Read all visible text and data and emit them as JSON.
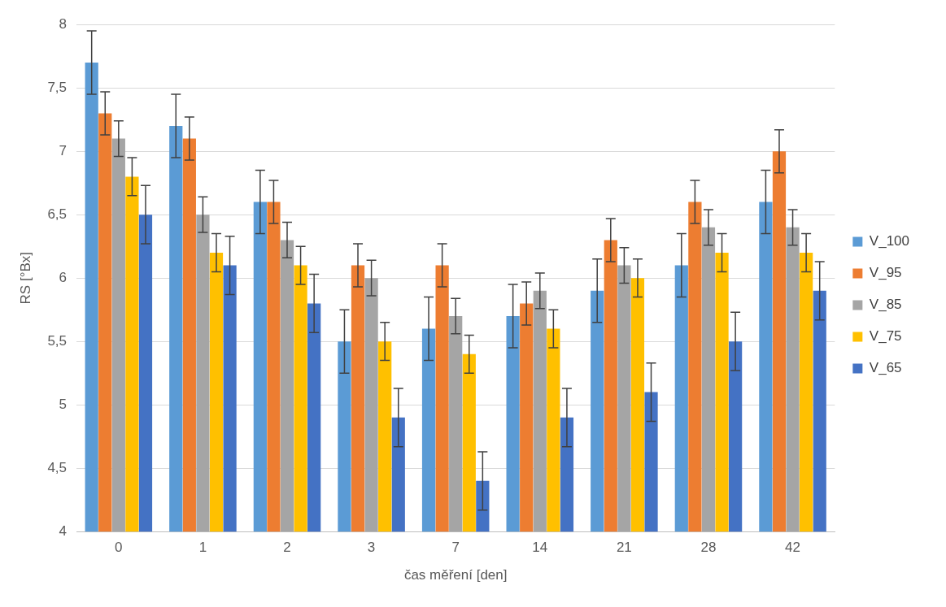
{
  "chart_data": {
    "type": "bar",
    "xlabel": "čas měření [den]",
    "ylabel": "RS [°Bx]",
    "categories": [
      "0",
      "1",
      "2",
      "3",
      "7",
      "14",
      "21",
      "28",
      "42"
    ],
    "series": [
      {
        "name": "V_100",
        "color": "#5b9bd5",
        "values": [
          7.7,
          7.2,
          6.6,
          5.5,
          5.6,
          5.7,
          5.9,
          6.1,
          6.6
        ],
        "errors": [
          0.25,
          0.25,
          0.25,
          0.25,
          0.25,
          0.25,
          0.25,
          0.25,
          0.25
        ]
      },
      {
        "name": "V_95",
        "color": "#ed7d31",
        "values": [
          7.3,
          7.1,
          6.6,
          6.1,
          6.1,
          5.8,
          6.3,
          6.6,
          7.0
        ],
        "errors": [
          0.17,
          0.17,
          0.17,
          0.17,
          0.17,
          0.17,
          0.17,
          0.17,
          0.17
        ]
      },
      {
        "name": "V_85",
        "color": "#a5a5a5",
        "values": [
          7.1,
          6.5,
          6.3,
          6.0,
          5.7,
          5.9,
          6.1,
          6.4,
          6.4
        ],
        "errors": [
          0.14,
          0.14,
          0.14,
          0.14,
          0.14,
          0.14,
          0.14,
          0.14,
          0.14
        ]
      },
      {
        "name": "V_75",
        "color": "#ffc000",
        "values": [
          6.8,
          6.2,
          6.1,
          5.5,
          5.4,
          5.6,
          6.0,
          6.2,
          6.2
        ],
        "errors": [
          0.15,
          0.15,
          0.15,
          0.15,
          0.15,
          0.15,
          0.15,
          0.15,
          0.15
        ]
      },
      {
        "name": "V_65",
        "color": "#4472c4",
        "values": [
          6.5,
          6.1,
          5.8,
          4.9,
          4.4,
          4.9,
          5.1,
          5.5,
          5.9
        ],
        "errors": [
          0.23,
          0.23,
          0.23,
          0.23,
          0.23,
          0.23,
          0.23,
          0.23,
          0.23
        ]
      }
    ],
    "ylim": [
      4,
      8
    ],
    "yticks": [
      4,
      {
        "value": 4.5,
        "label": "4,5"
      },
      5,
      {
        "value": 5.5,
        "label": "5,5"
      },
      6,
      {
        "value": 6.5,
        "label": "6,5"
      },
      7,
      {
        "value": 7.5,
        "label": "7,5"
      },
      8
    ],
    "grid": "y",
    "legend": "right"
  }
}
